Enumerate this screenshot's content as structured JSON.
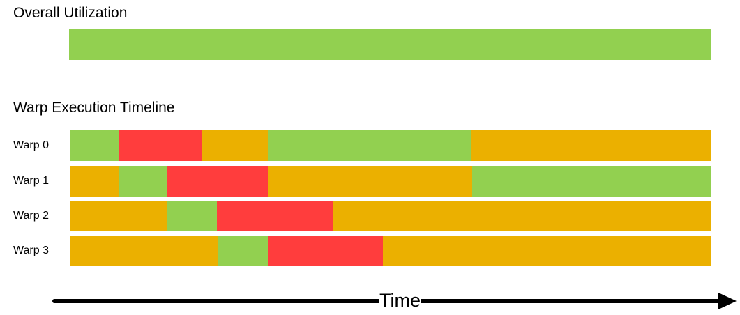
{
  "colors": {
    "executing": "#92d050",
    "stalled": "#ff3d3d",
    "waiting": "#ebb000",
    "axis": "#000000"
  },
  "overall": {
    "title": "Overall Utilization",
    "state": "executing"
  },
  "timeline": {
    "title": "Warp Execution Timeline",
    "total_duration": 920,
    "warps": [
      {
        "label": "Warp 0",
        "segments": [
          {
            "state": "executing",
            "duration": 71
          },
          {
            "state": "stalled",
            "duration": 119
          },
          {
            "state": "waiting",
            "duration": 94
          },
          {
            "state": "executing",
            "duration": 292
          },
          {
            "state": "waiting",
            "duration": 344
          }
        ]
      },
      {
        "label": "Warp 1",
        "segments": [
          {
            "state": "waiting",
            "duration": 71
          },
          {
            "state": "executing",
            "duration": 69
          },
          {
            "state": "stalled",
            "duration": 144
          },
          {
            "state": "waiting",
            "duration": 293
          },
          {
            "state": "executing",
            "duration": 343
          }
        ]
      },
      {
        "label": "Warp 2",
        "segments": [
          {
            "state": "waiting",
            "duration": 140
          },
          {
            "state": "executing",
            "duration": 71
          },
          {
            "state": "stalled",
            "duration": 167
          },
          {
            "state": "waiting",
            "duration": 542
          }
        ]
      },
      {
        "label": "Warp 3",
        "segments": [
          {
            "state": "waiting",
            "duration": 212
          },
          {
            "state": "executing",
            "duration": 72
          },
          {
            "state": "stalled",
            "duration": 165
          },
          {
            "state": "waiting",
            "duration": 471
          }
        ]
      }
    ]
  },
  "axis": {
    "label": "Time"
  }
}
